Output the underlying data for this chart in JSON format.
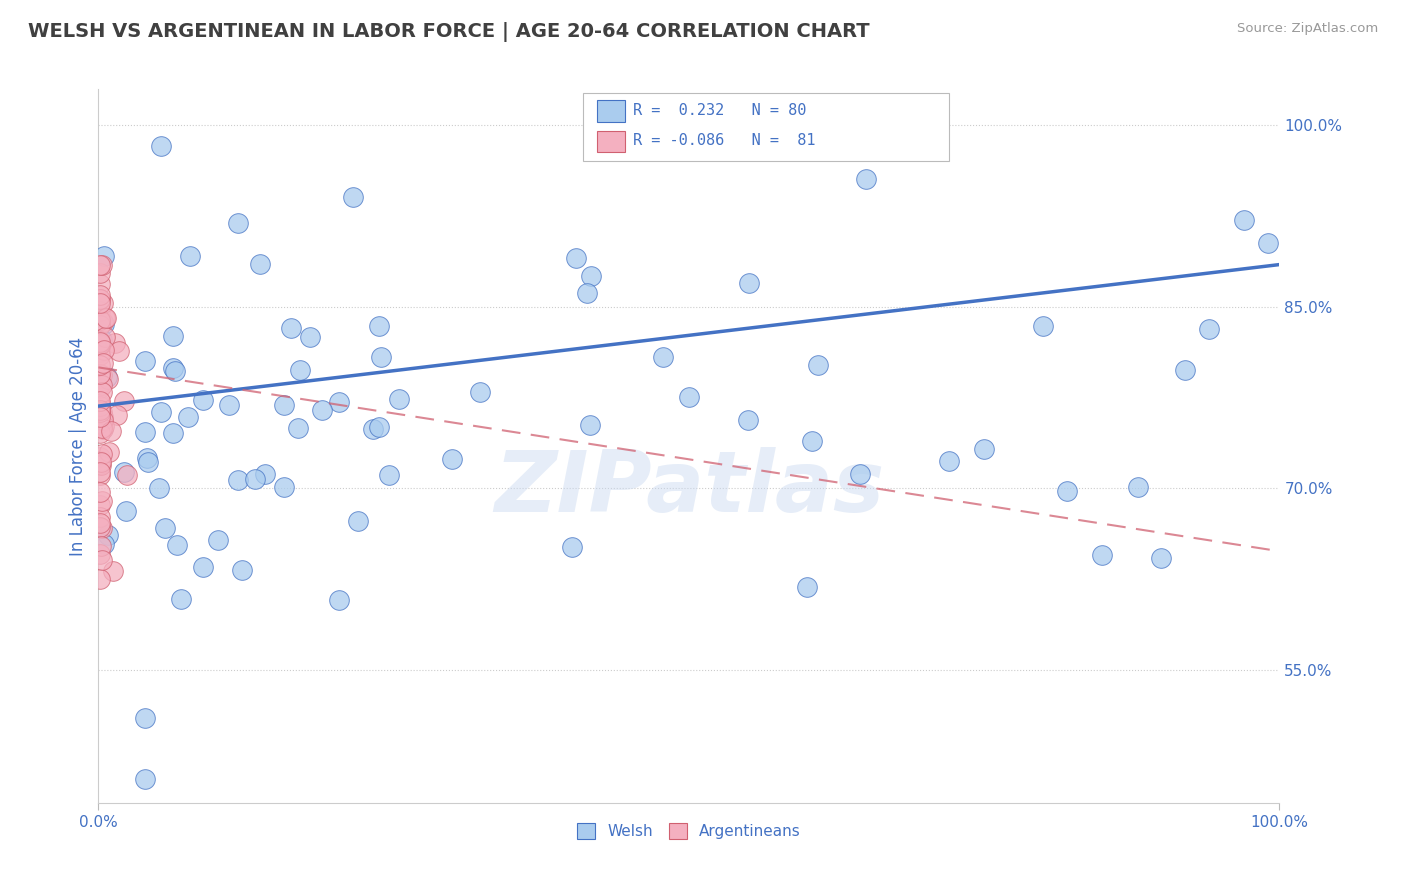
{
  "title": "WELSH VS ARGENTINEAN IN LABOR FORCE | AGE 20-64 CORRELATION CHART",
  "source": "Source: ZipAtlas.com",
  "ylabel": "In Labor Force | Age 20-64",
  "xlim": [
    0.0,
    1.0
  ],
  "ylim": [
    0.44,
    1.03
  ],
  "yticks": [
    0.55,
    0.7,
    0.85,
    1.0
  ],
  "ytick_labels": [
    "55.0%",
    "70.0%",
    "85.0%",
    "100.0%"
  ],
  "xticks": [
    0.0,
    1.0
  ],
  "xtick_labels": [
    "0.0%",
    "100.0%"
  ],
  "welsh_R": 0.232,
  "welsh_N": 80,
  "arg_R": -0.086,
  "arg_N": 81,
  "welsh_color": "#aaccee",
  "welsh_line_color": "#4472c4",
  "arg_color": "#f4b0c0",
  "arg_line_color": "#d06070",
  "watermark": "ZIPatlas",
  "title_color": "#404040",
  "axis_label_color": "#4472c4",
  "tick_label_color": "#4472c4",
  "legend_text_color": "#4472c4",
  "welsh_trend_x0": 0.0,
  "welsh_trend_y0": 0.768,
  "welsh_trend_x1": 1.0,
  "welsh_trend_y1": 0.885,
  "arg_trend_x0": 0.0,
  "arg_trend_y0": 0.8,
  "arg_trend_x1": 1.0,
  "arg_trend_y1": 0.648
}
